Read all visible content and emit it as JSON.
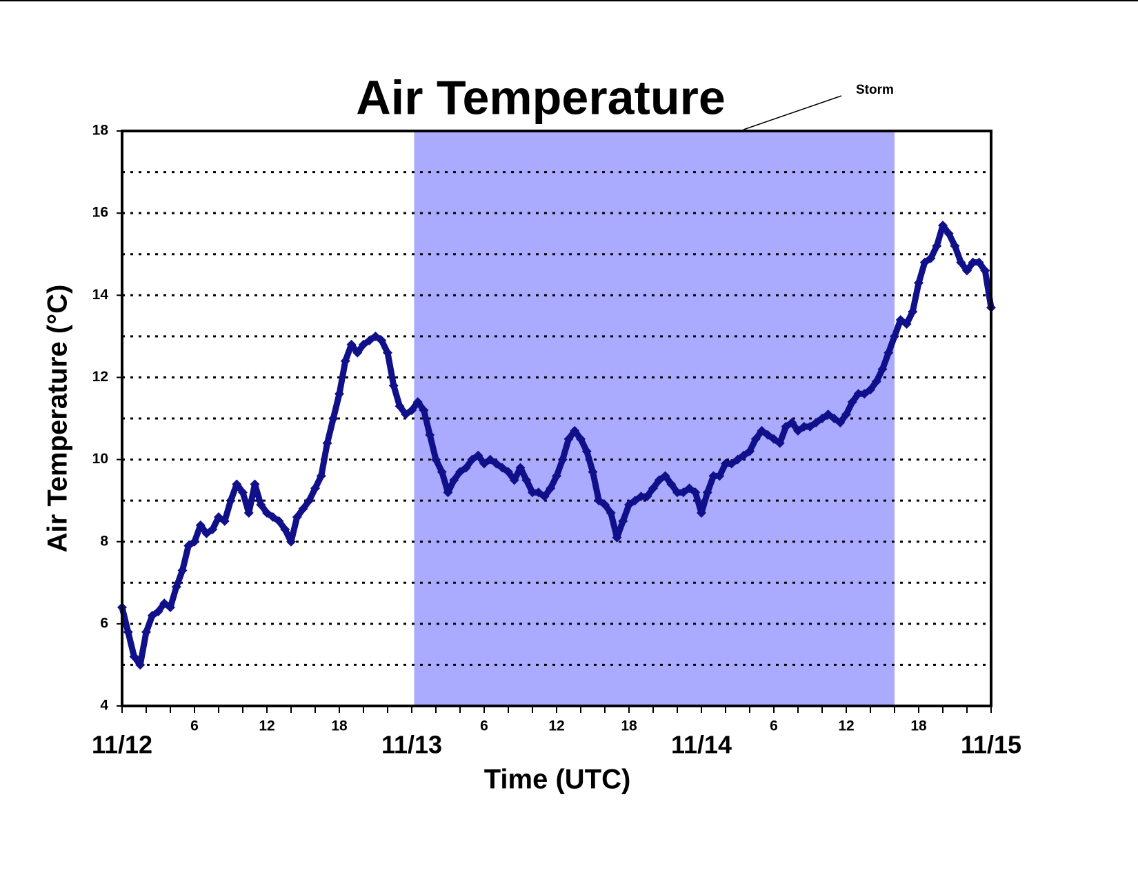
{
  "chart_data": {
    "type": "scatter",
    "title": "Air Temperature",
    "xlabel": "Time (UTC)",
    "ylabel": "Air Temperature (°C)",
    "xlim": [
      0,
      72
    ],
    "ylim": [
      4,
      18
    ],
    "yticks": [
      4,
      6,
      8,
      10,
      12,
      14,
      16,
      18
    ],
    "ygrid": [
      5,
      6,
      7,
      8,
      9,
      10,
      11,
      12,
      13,
      14,
      15,
      16,
      17
    ],
    "xticks": [
      {
        "value": 6,
        "label": "6"
      },
      {
        "value": 12,
        "label": "12"
      },
      {
        "value": 18,
        "label": "18"
      },
      {
        "value": 30,
        "label": "6"
      },
      {
        "value": 36,
        "label": "12"
      },
      {
        "value": 42,
        "label": "18"
      },
      {
        "value": 54,
        "label": "6"
      },
      {
        "value": 60,
        "label": "12"
      },
      {
        "value": 66,
        "label": "18"
      }
    ],
    "xdateticks": [
      {
        "value": 0,
        "label": "11/12"
      },
      {
        "value": 24,
        "label": "11/13"
      },
      {
        "value": 48,
        "label": "11/14"
      },
      {
        "value": 72,
        "label": "11/15"
      }
    ],
    "xminorticks": [
      0,
      2,
      4,
      6,
      8,
      10,
      12,
      14,
      16,
      18,
      20,
      22,
      24,
      26,
      28,
      30,
      32,
      34,
      36,
      38,
      40,
      42,
      44,
      46,
      48,
      50,
      52,
      54,
      56,
      58,
      60,
      62,
      64,
      66,
      68,
      70,
      72
    ],
    "shade": {
      "label": "Storm",
      "x": [
        24.2,
        64
      ],
      "color": "#aaaaff"
    },
    "series": [
      {
        "name": "Air Temperature",
        "color": "#10108a",
        "x": [
          0,
          0.5,
          1,
          1.5,
          2,
          2.5,
          3,
          3.5,
          4,
          4.5,
          5,
          5.5,
          6,
          6.5,
          7,
          7.5,
          8,
          8.5,
          9,
          9.5,
          10,
          10.5,
          11,
          11.5,
          12,
          12.5,
          13,
          13.5,
          14,
          14.5,
          15,
          15.5,
          16,
          16.5,
          17,
          17.5,
          18,
          18.5,
          19,
          19.5,
          20,
          20.5,
          21,
          21.5,
          22,
          22.5,
          23,
          23.5,
          24,
          24.5,
          25,
          25.5,
          26,
          26.5,
          27,
          27.5,
          28,
          28.5,
          29,
          29.5,
          30,
          30.5,
          31,
          31.5,
          32,
          32.5,
          33,
          33.5,
          34,
          34.5,
          35,
          35.5,
          36,
          36.5,
          37,
          37.5,
          38,
          38.5,
          39,
          39.5,
          40,
          40.5,
          41,
          41.5,
          42,
          42.5,
          43,
          43.5,
          44,
          44.5,
          45,
          45.5,
          46,
          46.5,
          47,
          47.5,
          48,
          48.5,
          49,
          49.5,
          50,
          50.5,
          51,
          51.5,
          52,
          52.5,
          53,
          53.5,
          54,
          54.5,
          55,
          55.5,
          56,
          56.5,
          57,
          57.5,
          58,
          58.5,
          59,
          59.5,
          60,
          60.5,
          61,
          61.5,
          62,
          62.5,
          63,
          63.5,
          64,
          64.5,
          65,
          65.5,
          66,
          66.5,
          67,
          67.5,
          68,
          68.5,
          69,
          69.5,
          70,
          70.5,
          71,
          71.5,
          72
        ],
        "values": [
          6.4,
          5.8,
          5.2,
          5.0,
          5.8,
          6.2,
          6.3,
          6.5,
          6.4,
          6.9,
          7.3,
          7.9,
          8.0,
          8.4,
          8.2,
          8.3,
          8.6,
          8.5,
          9.0,
          9.4,
          9.2,
          8.7,
          9.4,
          8.9,
          8.7,
          8.6,
          8.5,
          8.3,
          8.0,
          8.6,
          8.8,
          9.0,
          9.3,
          9.6,
          10.4,
          11.0,
          11.6,
          12.4,
          12.8,
          12.6,
          12.8,
          12.9,
          13.0,
          12.9,
          12.6,
          11.8,
          11.3,
          11.1,
          11.2,
          11.4,
          11.2,
          10.6,
          10.0,
          9.7,
          9.2,
          9.5,
          9.7,
          9.8,
          10.0,
          10.1,
          9.9,
          10.0,
          9.9,
          9.8,
          9.7,
          9.5,
          9.8,
          9.5,
          9.2,
          9.2,
          9.1,
          9.3,
          9.6,
          10.0,
          10.5,
          10.7,
          10.5,
          10.2,
          9.7,
          9.0,
          8.9,
          8.7,
          8.1,
          8.5,
          8.9,
          9.0,
          9.1,
          9.1,
          9.3,
          9.5,
          9.6,
          9.4,
          9.2,
          9.2,
          9.3,
          9.2,
          8.7,
          9.2,
          9.6,
          9.6,
          9.9,
          9.9,
          10.0,
          10.1,
          10.2,
          10.5,
          10.7,
          10.6,
          10.5,
          10.4,
          10.8,
          10.9,
          10.7,
          10.8,
          10.8,
          10.9,
          11.0,
          11.1,
          11.0,
          10.9,
          11.1,
          11.4,
          11.6,
          11.6,
          11.7,
          11.9,
          12.2,
          12.6,
          13.0,
          13.4,
          13.3,
          13.6,
          14.3,
          14.8,
          14.9,
          15.2,
          15.7,
          15.5,
          15.2,
          14.8,
          14.6,
          14.8,
          14.8,
          14.6,
          13.7
        ]
      }
    ]
  }
}
